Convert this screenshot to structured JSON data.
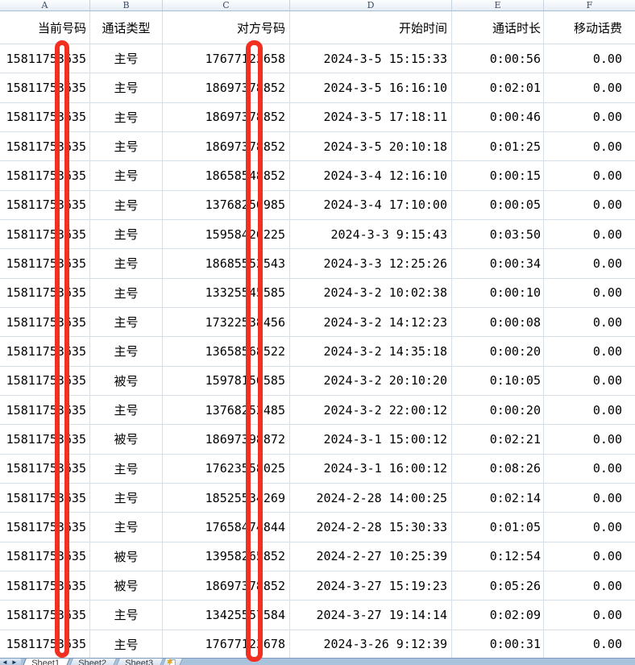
{
  "column_strip": {
    "letters": [
      "A",
      "B",
      "C",
      "D",
      "E",
      "F"
    ]
  },
  "table": {
    "headers": [
      "当前号码",
      "通话类型",
      "对方号码",
      "开始时间",
      "通话时长",
      "移动话费"
    ],
    "rows": [
      {
        "a": "15811753635",
        "b": "主号",
        "c": "17677123658",
        "d": "2024-3-5 15:15:33",
        "e": "0:00:56",
        "f": "0.00"
      },
      {
        "a": "15811753635",
        "b": "主号",
        "c": "18697378852",
        "d": "2024-3-5 16:16:10",
        "e": "0:02:01",
        "f": "0.00"
      },
      {
        "a": "15811753635",
        "b": "主号",
        "c": "18697378852",
        "d": "2024-3-5 17:18:11",
        "e": "0:00:46",
        "f": "0.00"
      },
      {
        "a": "15811753635",
        "b": "主号",
        "c": "18697378852",
        "d": "2024-3-5 20:10:18",
        "e": "0:01:25",
        "f": "0.00"
      },
      {
        "a": "15811753635",
        "b": "主号",
        "c": "18658548852",
        "d": "2024-3-4 12:16:10",
        "e": "0:00:15",
        "f": "0.00"
      },
      {
        "a": "15811753635",
        "b": "主号",
        "c": "13768250985",
        "d": "2024-3-4 17:10:00",
        "e": "0:00:05",
        "f": "0.00"
      },
      {
        "a": "15811753635",
        "b": "主号",
        "c": "15958426225",
        "d": "2024-3-3 9:15:43",
        "e": "0:03:50",
        "f": "0.00"
      },
      {
        "a": "15811753635",
        "b": "主号",
        "c": "18685552543",
        "d": "2024-3-3 12:25:26",
        "e": "0:00:34",
        "f": "0.00"
      },
      {
        "a": "15811753635",
        "b": "主号",
        "c": "13325545585",
        "d": "2024-3-2 10:02:38",
        "e": "0:00:10",
        "f": "0.00"
      },
      {
        "a": "15811753635",
        "b": "主号",
        "c": "17322538456",
        "d": "2024-3-2 14:12:23",
        "e": "0:00:08",
        "f": "0.00"
      },
      {
        "a": "15811753635",
        "b": "主号",
        "c": "13658568522",
        "d": "2024-3-2 14:35:18",
        "e": "0:00:20",
        "f": "0.00"
      },
      {
        "a": "15811753635",
        "b": "被号",
        "c": "15978156585",
        "d": "2024-3-2 20:10:20",
        "e": "0:10:05",
        "f": "0.00"
      },
      {
        "a": "15811753635",
        "b": "主号",
        "c": "13768252485",
        "d": "2024-3-2 22:00:12",
        "e": "0:00:20",
        "f": "0.00"
      },
      {
        "a": "15811753635",
        "b": "被号",
        "c": "18697398872",
        "d": "2024-3-1 15:00:12",
        "e": "0:02:21",
        "f": "0.00"
      },
      {
        "a": "15811753635",
        "b": "主号",
        "c": "17623558025",
        "d": "2024-3-1 16:00:12",
        "e": "0:08:26",
        "f": "0.00"
      },
      {
        "a": "15811753635",
        "b": "主号",
        "c": "18525534269",
        "d": "2024-2-28 14:00:25",
        "e": "0:02:14",
        "f": "0.00"
      },
      {
        "a": "15811753635",
        "b": "主号",
        "c": "17658474844",
        "d": "2024-2-28 15:30:33",
        "e": "0:01:05",
        "f": "0.00"
      },
      {
        "a": "15811753635",
        "b": "被号",
        "c": "13958265852",
        "d": "2024-2-27 10:25:39",
        "e": "0:12:54",
        "f": "0.00"
      },
      {
        "a": "15811753635",
        "b": "被号",
        "c": "18697378852",
        "d": "2024-3-27 15:19:23",
        "e": "0:05:26",
        "f": "0.00"
      },
      {
        "a": "15811753635",
        "b": "主号",
        "c": "13425557584",
        "d": "2024-3-27 19:14:14",
        "e": "0:02:09",
        "f": "0.00"
      },
      {
        "a": "15811753635",
        "b": "主号",
        "c": "17677123678",
        "d": "2024-3-26 9:12:39",
        "e": "0:00:31",
        "f": "0.00"
      }
    ]
  },
  "redaction": {
    "color": "#f13021"
  },
  "sheet_bar": {
    "tabs": [
      "Sheet1",
      "Sheet2",
      "Sheet3"
    ],
    "active_tab": "Sheet1",
    "icons": {
      "prev_sheet": "◄",
      "next_sheet": "►",
      "insert_worksheet": "✱"
    }
  }
}
